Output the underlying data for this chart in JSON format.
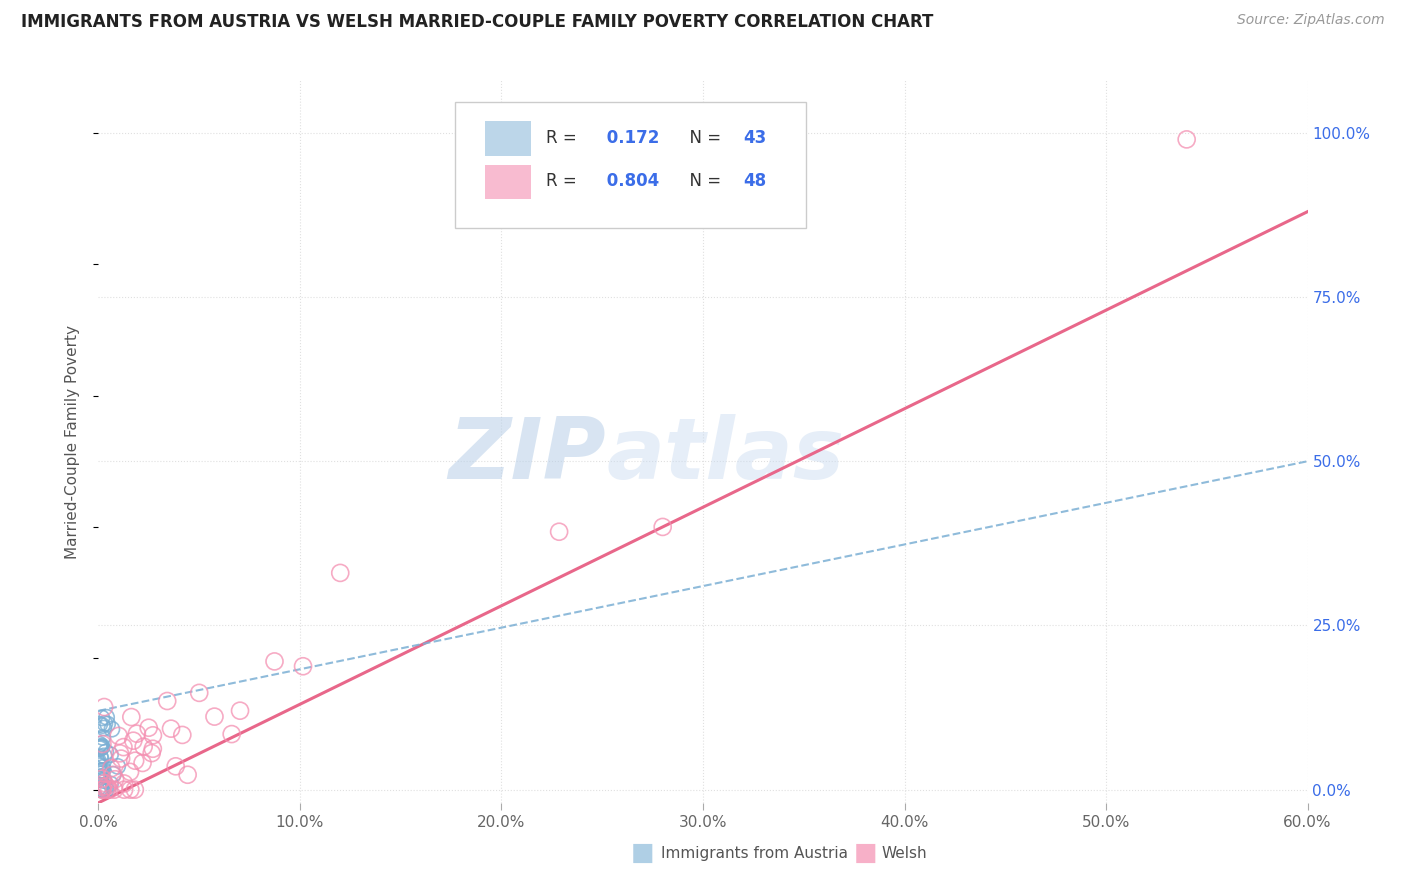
{
  "title": "IMMIGRANTS FROM AUSTRIA VS WELSH MARRIED-COUPLE FAMILY POVERTY CORRELATION CHART",
  "source": "Source: ZipAtlas.com",
  "xlabel_vals": [
    0,
    10,
    20,
    30,
    40,
    50,
    60
  ],
  "ylabel_vals": [
    0,
    25,
    50,
    75,
    100
  ],
  "ylabel_label": "Married-Couple Family Poverty",
  "xlim": [
    0,
    60
  ],
  "ylim": [
    -2,
    108
  ],
  "austria_color": "#7bafd4",
  "welsh_color": "#f48fb1",
  "welsh_line_color": "#e8678a",
  "austria_line_color": "#7bafd4",
  "r_value_color": "#3b6de8",
  "background_color": "#ffffff",
  "grid_color": "#e0e0e0",
  "watermark_color": "#d0dff0",
  "legend_box_color": "#f9f9f9",
  "legend_box_edge": "#dddddd"
}
